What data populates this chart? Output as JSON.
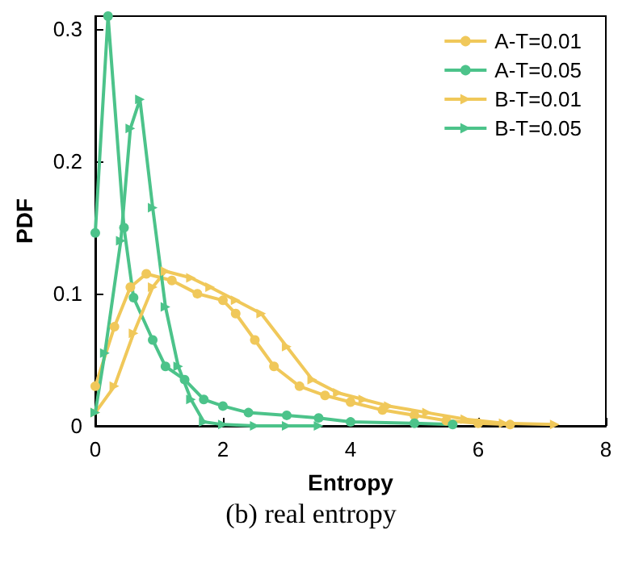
{
  "chart_data": {
    "type": "line",
    "xlabel": "Entropy",
    "ylabel": "PDF",
    "xlim": [
      0,
      8
    ],
    "xticks": [
      0,
      2,
      4,
      6,
      8
    ],
    "ylim": [
      0,
      0.31
    ],
    "yticks": [
      0,
      0.1,
      0.2,
      0.3
    ],
    "grid": false,
    "legend": "top right",
    "line_style": "solid",
    "annotations": [
      "(b) real entropy"
    ],
    "series": [
      {
        "name": "A-T=0.01",
        "color": "#f0c85a",
        "marker": "circle",
        "x": [
          0,
          0.3,
          0.55,
          0.8,
          1.2,
          1.6,
          2.0,
          2.2,
          2.5,
          2.8,
          3.2,
          3.6,
          4.0,
          4.5,
          5.0,
          5.5,
          6.0,
          6.5
        ],
        "values": [
          0.03,
          0.075,
          0.105,
          0.115,
          0.11,
          0.1,
          0.095,
          0.085,
          0.065,
          0.045,
          0.03,
          0.023,
          0.018,
          0.012,
          0.008,
          0.004,
          0.002,
          0.001
        ]
      },
      {
        "name": "A-T=0.05",
        "color": "#4cc38a",
        "marker": "circle",
        "x": [
          0,
          0.2,
          0.45,
          0.6,
          0.9,
          1.1,
          1.4,
          1.7,
          2.0,
          2.4,
          3.0,
          3.5,
          4.0,
          5.0,
          5.6
        ],
        "values": [
          0.146,
          0.31,
          0.15,
          0.097,
          0.065,
          0.045,
          0.035,
          0.02,
          0.015,
          0.01,
          0.008,
          0.006,
          0.003,
          0.002,
          0.001
        ]
      },
      {
        "name": "B-T=0.01",
        "color": "#f0c85a",
        "marker": "triangle",
        "x": [
          0,
          0.3,
          0.6,
          0.9,
          1.1,
          1.5,
          1.8,
          2.2,
          2.6,
          3.0,
          3.4,
          3.8,
          4.2,
          4.6,
          5.2,
          5.8,
          6.4,
          7.2
        ],
        "values": [
          0.01,
          0.03,
          0.07,
          0.105,
          0.117,
          0.112,
          0.105,
          0.095,
          0.085,
          0.06,
          0.035,
          0.025,
          0.02,
          0.015,
          0.01,
          0.005,
          0.002,
          0.001
        ]
      },
      {
        "name": "B-T=0.05",
        "color": "#4cc38a",
        "marker": "triangle",
        "x": [
          0,
          0.15,
          0.4,
          0.55,
          0.7,
          0.9,
          1.1,
          1.3,
          1.5,
          1.7,
          2.0,
          2.5,
          3.0,
          3.5
        ],
        "values": [
          0.01,
          0.055,
          0.14,
          0.225,
          0.247,
          0.165,
          0.09,
          0.045,
          0.02,
          0.003,
          0.001,
          0.0,
          0.0,
          0.0
        ]
      }
    ]
  }
}
